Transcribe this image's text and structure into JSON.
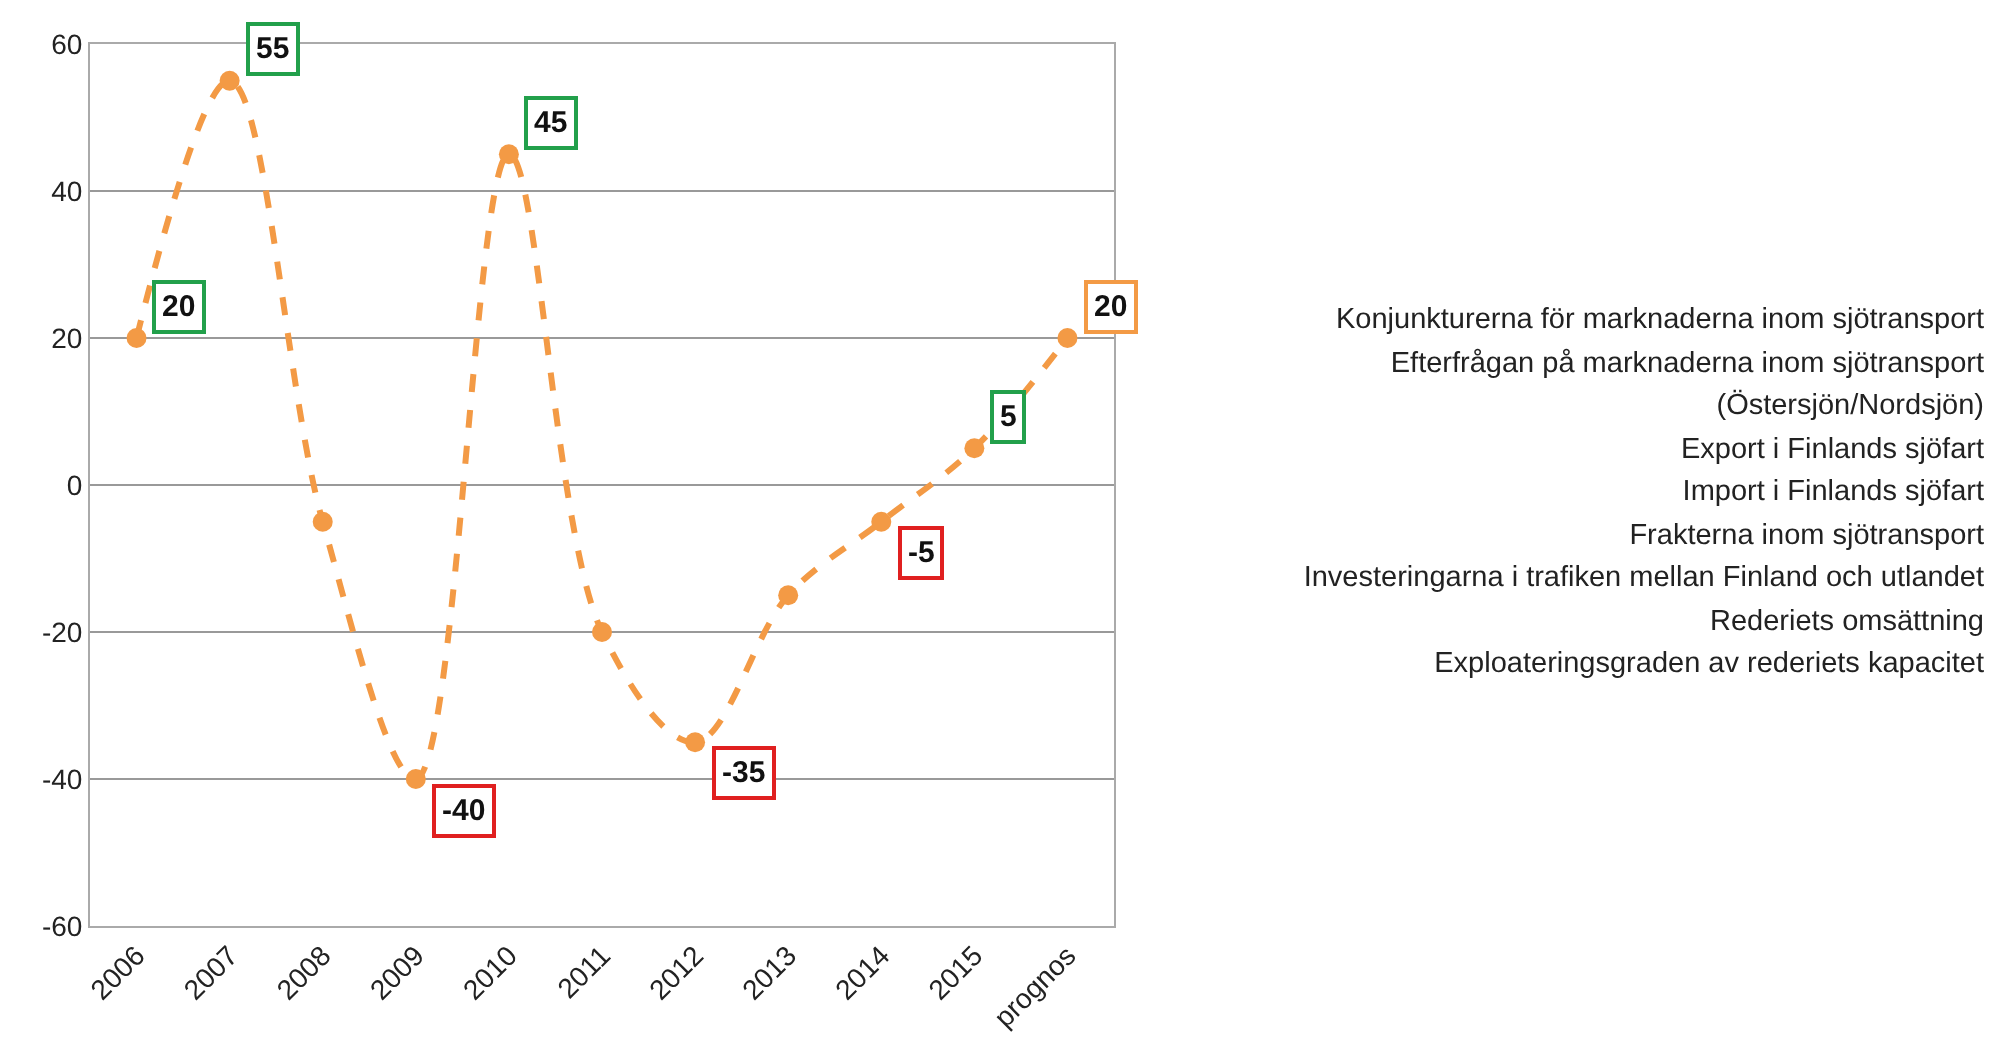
{
  "chart_data": {
    "type": "line",
    "categories": [
      "2006",
      "2007",
      "2008",
      "2009",
      "2010",
      "2011",
      "2012",
      "2013",
      "2014",
      "2015",
      "prognos"
    ],
    "series": [
      {
        "color": "#f39a45",
        "values": [
          20,
          55,
          -5,
          -40,
          45,
          -20,
          -35,
          -15,
          -5,
          5,
          20
        ],
        "value_labels": [
          "20",
          "55",
          null,
          "-40",
          "45",
          null,
          "-35",
          null,
          "-5",
          "5",
          "20"
        ]
      }
    ],
    "ylim": [
      -60,
      60
    ],
    "yticks": [
      -60,
      -40,
      -20,
      0,
      20,
      40,
      60
    ],
    "grid": "y",
    "marker": "circle",
    "line_style": "dashed",
    "legend": false,
    "annotations": [
      "Konjunkturerna för marknaderna inom sjötransport",
      "Efterfrågan på marknaderna inom sjötransport (Östersjön/Nordsjön)",
      "Export i Finlands sjöfart",
      "Import i Finlands sjöfart",
      "Frakterna inom sjötransport",
      "Investeringarna i trafiken mellan Finland och utlandet",
      "Rederiets omsättning",
      "Exploateringsgraden av rederiets kapacitet"
    ]
  }
}
